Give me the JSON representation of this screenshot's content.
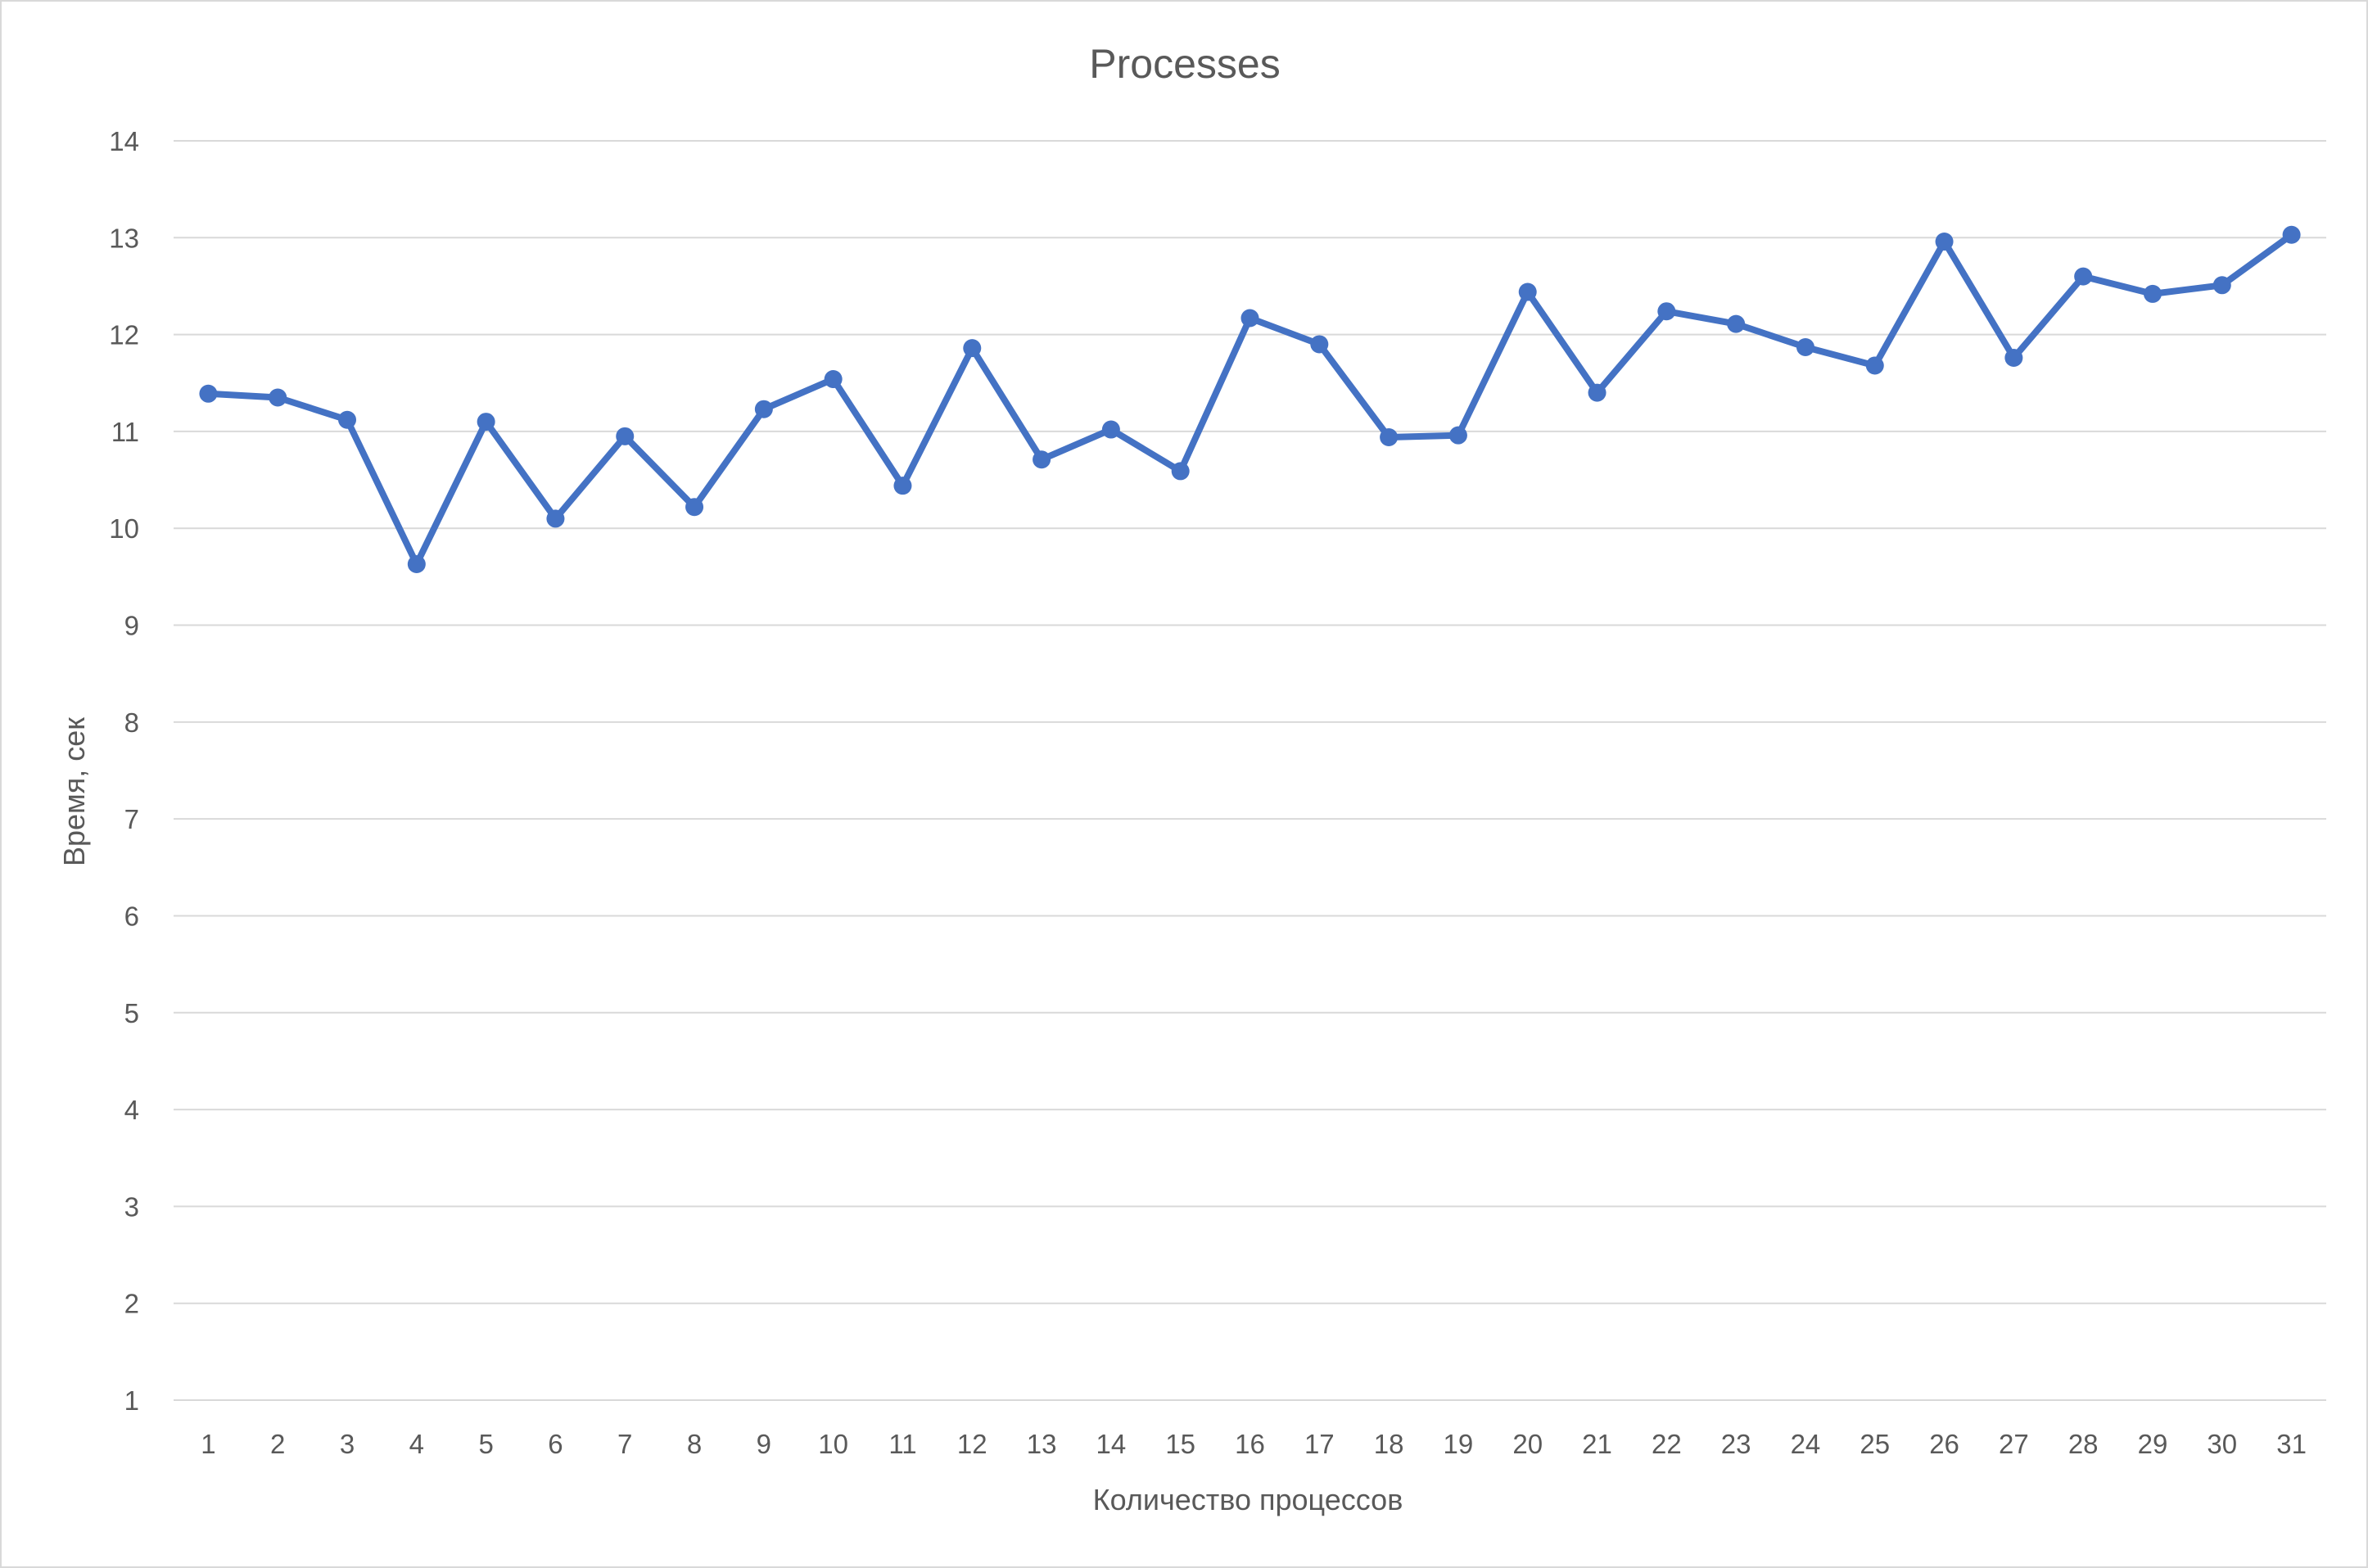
{
  "chart_data": {
    "type": "line",
    "title": "Processes",
    "xlabel": "Количество процессов",
    "ylabel": "Время, сек",
    "ylim": [
      1,
      14
    ],
    "yticks": [
      1,
      2,
      3,
      4,
      5,
      6,
      7,
      8,
      9,
      10,
      11,
      12,
      13,
      14
    ],
    "categories": [
      "1",
      "2",
      "3",
      "4",
      "5",
      "6",
      "7",
      "8",
      "9",
      "10",
      "11",
      "12",
      "13",
      "14",
      "15",
      "16",
      "17",
      "18",
      "19",
      "20",
      "21",
      "22",
      "23",
      "24",
      "25",
      "26",
      "27",
      "28",
      "29",
      "30",
      "31"
    ],
    "grid": true,
    "legend": "none",
    "series": [
      {
        "color": "#4472c4",
        "values": [
          11.39,
          11.35,
          11.12,
          9.63,
          11.1,
          10.1,
          10.95,
          10.22,
          11.23,
          11.54,
          10.44,
          11.86,
          10.71,
          11.02,
          10.59,
          12.17,
          11.9,
          10.94,
          10.96,
          12.44,
          11.4,
          12.24,
          12.11,
          11.87,
          11.68,
          12.96,
          11.76,
          12.6,
          12.42,
          12.51,
          13.03
        ]
      }
    ],
    "gridColor": "#d9d9d9"
  }
}
